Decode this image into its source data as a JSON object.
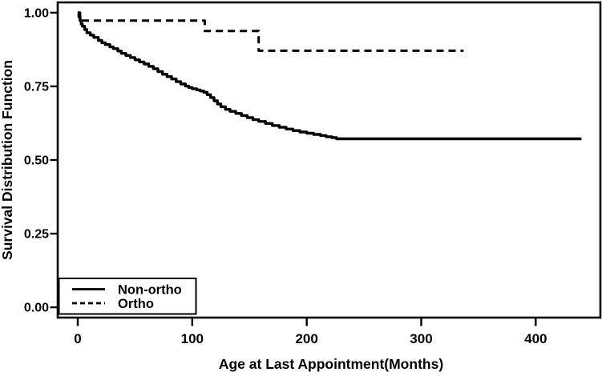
{
  "chart_data": {
    "type": "line",
    "subtype": "kaplan-meier-step-survival",
    "title": "",
    "xlabel": "Age at Last Appointment(Months)",
    "ylabel": "Survival Distribution Function",
    "xlim": [
      -17.5,
      456.5
    ],
    "ylim": [
      -0.035,
      1.035
    ],
    "x_ticks": {
      "values": [
        0,
        100,
        200,
        300,
        400
      ],
      "labels": [
        "0",
        "100",
        "200",
        "300",
        "400"
      ]
    },
    "y_ticks": {
      "values": [
        0.0,
        0.25,
        0.5,
        0.75,
        1.0
      ],
      "labels": [
        "0.00",
        "0.25",
        "0.50",
        "0.75",
        "1.00"
      ]
    },
    "grid": "off",
    "foreground_color": "#000000",
    "background_color": "#ffffff",
    "legend": {
      "position": "bottom-left-inside-plot",
      "entries": [
        {
          "label": "Non-ortho",
          "line": "solid"
        },
        {
          "label": "Ortho",
          "line": "dashed"
        }
      ]
    },
    "series": [
      {
        "name": "Non-ortho",
        "line": "solid",
        "color": "#000000",
        "end_month": 440,
        "points": [
          [
            0,
            1.0
          ],
          [
            1,
            0.986
          ],
          [
            2,
            0.973
          ],
          [
            3,
            0.962
          ],
          [
            4,
            0.954
          ],
          [
            6,
            0.943
          ],
          [
            8,
            0.932
          ],
          [
            11,
            0.924
          ],
          [
            14,
            0.916
          ],
          [
            18,
            0.906
          ],
          [
            21,
            0.898
          ],
          [
            24,
            0.892
          ],
          [
            28,
            0.884
          ],
          [
            31,
            0.878
          ],
          [
            35,
            0.87
          ],
          [
            38,
            0.862
          ],
          [
            42,
            0.855
          ],
          [
            46,
            0.848
          ],
          [
            50,
            0.84
          ],
          [
            54,
            0.833
          ],
          [
            58,
            0.826
          ],
          [
            62,
            0.818
          ],
          [
            66,
            0.81
          ],
          [
            70,
            0.8
          ],
          [
            74,
            0.791
          ],
          [
            78,
            0.783
          ],
          [
            82,
            0.775
          ],
          [
            86,
            0.766
          ],
          [
            90,
            0.758
          ],
          [
            94,
            0.751
          ],
          [
            97,
            0.746
          ],
          [
            100,
            0.742
          ],
          [
            104,
            0.738
          ],
          [
            107,
            0.734
          ],
          [
            110,
            0.73
          ],
          [
            113,
            0.722
          ],
          [
            116,
            0.712
          ],
          [
            119,
            0.701
          ],
          [
            122,
            0.69
          ],
          [
            125,
            0.681
          ],
          [
            129,
            0.672
          ],
          [
            133,
            0.665
          ],
          [
            138,
            0.658
          ],
          [
            143,
            0.651
          ],
          [
            148,
            0.644
          ],
          [
            153,
            0.637
          ],
          [
            158,
            0.631
          ],
          [
            164,
            0.624
          ],
          [
            170,
            0.617
          ],
          [
            176,
            0.611
          ],
          [
            182,
            0.605
          ],
          [
            188,
            0.6
          ],
          [
            194,
            0.595
          ],
          [
            200,
            0.591
          ],
          [
            206,
            0.587
          ],
          [
            212,
            0.583
          ],
          [
            217,
            0.579
          ],
          [
            222,
            0.576
          ],
          [
            226,
            0.572
          ]
        ]
      },
      {
        "name": "Ortho",
        "line": "dashed",
        "color": "#000000",
        "end_month": 337,
        "points": [
          [
            0,
            1.0
          ],
          [
            2,
            0.973
          ],
          [
            111,
            0.938
          ],
          [
            158,
            0.871
          ]
        ]
      }
    ]
  }
}
